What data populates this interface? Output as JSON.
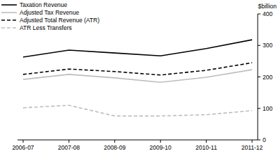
{
  "chart_data": {
    "type": "line",
    "y_label": "$billion",
    "categories": [
      "2006-07",
      "2007-08",
      "2008-09",
      "2009-10",
      "2010-11",
      "2011-12"
    ],
    "series": [
      {
        "name": "Taxation Revenue",
        "color": "#000000",
        "line_style": "solid",
        "values": [
          263,
          285,
          276,
          267,
          290,
          318
        ]
      },
      {
        "name": "Adjusted Tax Revenue",
        "color": "#bdbdbd",
        "line_style": "solid",
        "values": [
          192,
          208,
          197,
          183,
          199,
          223
        ]
      },
      {
        "name": "Adjusted Total Revenue (ATR)",
        "color": "#000000",
        "line_style": "dashed",
        "values": [
          208,
          225,
          217,
          206,
          221,
          245
        ]
      },
      {
        "name": "ATR Less Transfers",
        "color": "#bdbdbd",
        "line_style": "dashed",
        "values": [
          102,
          110,
          76,
          76,
          80,
          93
        ]
      }
    ],
    "ylim": [
      0,
      400
    ],
    "yticks": [
      0,
      100,
      200,
      300,
      400
    ],
    "grid": false,
    "legend": "top-left"
  }
}
